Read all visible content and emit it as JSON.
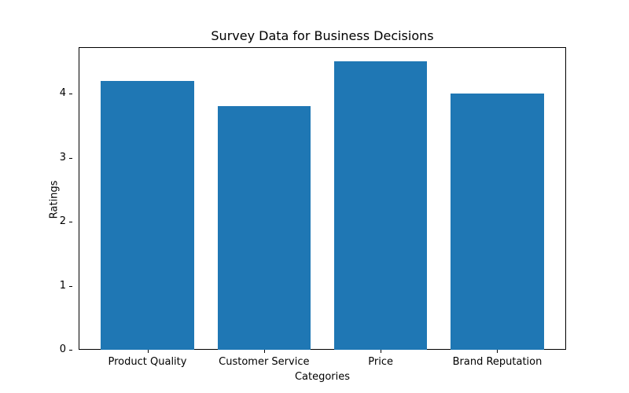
{
  "chart_data": {
    "type": "bar",
    "title": "Survey Data for Business Decisions",
    "xlabel": "Categories",
    "ylabel": "Ratings",
    "categories": [
      "Product Quality",
      "Customer Service",
      "Price",
      "Brand Reputation"
    ],
    "values": [
      4.2,
      3.8,
      4.5,
      4.0
    ],
    "ylim": [
      0,
      4.725
    ],
    "yticks": [
      0,
      1,
      2,
      3,
      4
    ],
    "grid": false,
    "legend": null,
    "bar_color": "#1f77b4"
  }
}
